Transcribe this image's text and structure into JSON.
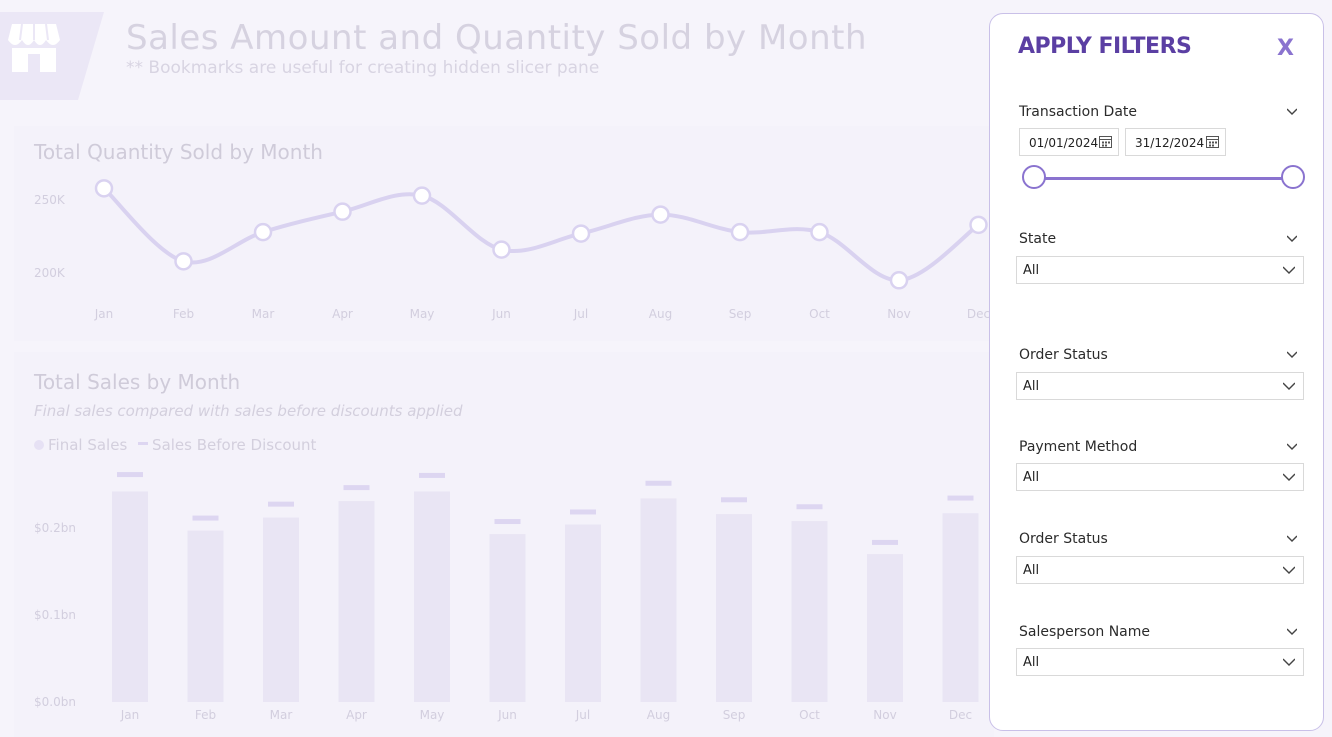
{
  "header": {
    "title": "Sales Amount and Quantity Sold by Month",
    "subtitle": "** Bookmarks are useful for creating hidden slicer pane"
  },
  "qty_chart": {
    "title": "Total Quantity Sold by Month"
  },
  "sales_chart": {
    "title": "Total Sales by Month",
    "subtitle": "Final sales compared with sales before discounts applied",
    "legend_final": "Final Sales",
    "legend_before": "Sales Before Discount"
  },
  "chart_data": [
    {
      "type": "line",
      "title": "Total Quantity Sold by Month",
      "categories": [
        "Jan",
        "Feb",
        "Mar",
        "Apr",
        "May",
        "Jun",
        "Jul",
        "Aug",
        "Sep",
        "Oct",
        "Nov",
        "Dec"
      ],
      "values": [
        258000,
        208000,
        228000,
        242000,
        253000,
        216000,
        227000,
        240000,
        228000,
        228000,
        195000,
        233000
      ],
      "y_ticks": [
        "250K",
        "200K"
      ],
      "ylim": [
        180000,
        265000
      ],
      "color": "#d9d2f0"
    },
    {
      "type": "bar",
      "title": "Total Sales by Month",
      "categories": [
        "Jan",
        "Feb",
        "Mar",
        "Apr",
        "May",
        "Jun",
        "Jul",
        "Aug",
        "Sep",
        "Oct",
        "Nov",
        "Dec"
      ],
      "series": [
        {
          "name": "Final Sales",
          "values": [
            0.242,
            0.197,
            0.212,
            0.231,
            0.242,
            0.193,
            0.204,
            0.234,
            0.216,
            0.208,
            0.17,
            0.217
          ]
        },
        {
          "name": "Sales Before Discount",
          "values": [
            0.262,
            0.212,
            0.228,
            0.247,
            0.261,
            0.208,
            0.219,
            0.252,
            0.233,
            0.225,
            0.184,
            0.235
          ]
        }
      ],
      "y_ticks": [
        "$0.2bn",
        "$0.1bn",
        "$0.0bn"
      ],
      "ylim": [
        0,
        0.27
      ],
      "colors": {
        "bar": "#e9e5f4",
        "marker": "#ddd6f1"
      }
    }
  ],
  "filter_pane": {
    "title": "APPLY FILTERS",
    "close": "X",
    "transaction_date": {
      "label": "Transaction Date",
      "start": "01/01/2024",
      "end": "31/12/2024"
    },
    "slicers": [
      {
        "label": "State",
        "value": "All"
      },
      {
        "label": "Order Status",
        "value": "All"
      },
      {
        "label": "Payment Method",
        "value": "All"
      },
      {
        "label": "Order Status",
        "value": "All"
      },
      {
        "label": "Salesperson Name",
        "value": "All"
      }
    ]
  },
  "colors": {
    "accent": "#5b3fa3",
    "slider": "#8a73cf",
    "faded_text": "#d6d2e0"
  }
}
